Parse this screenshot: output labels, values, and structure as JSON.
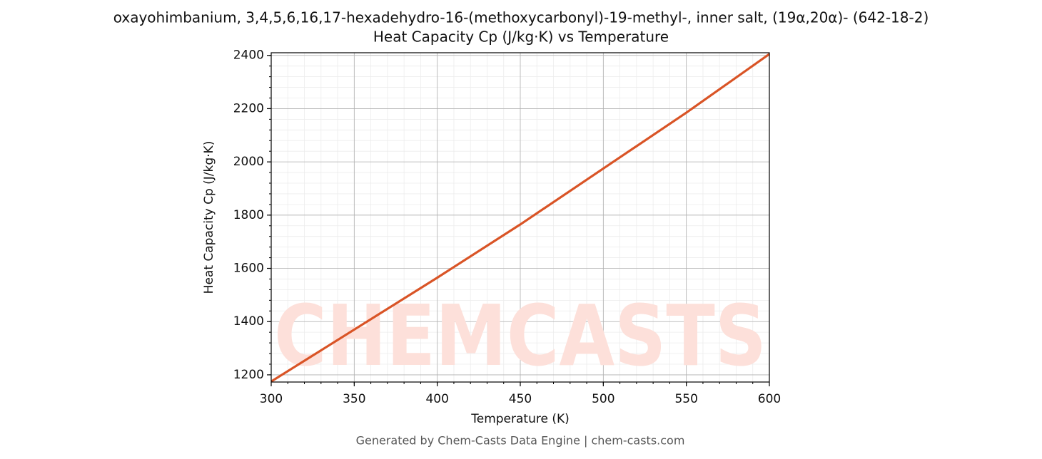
{
  "chart_data": {
    "type": "line",
    "title": "oxayohimbanium, 3,4,5,6,16,17-hexadehydro-16-(methoxycarbonyl)-19-methyl-, inner salt, (19α,20α)- (642-18-2)",
    "subtitle": "Heat Capacity Cp (J/kg·K) vs Temperature",
    "x_label": "Temperature (K)",
    "y_label": "Heat Capacity Cp (J/kg·K)",
    "footer": "Generated by Chem-Casts Data Engine | chem-casts.com",
    "watermark": "CHEMCASTS",
    "x": [
      300,
      350,
      400,
      450,
      500,
      550,
      600
    ],
    "series": [
      {
        "name": "Heat Capacity Cp",
        "color": "#d95426",
        "values": [
          1175,
          1370,
          1565,
          1765,
          1975,
          2185,
          2405
        ]
      }
    ],
    "xlim": [
      300,
      600
    ],
    "xticks": [
      300,
      350,
      400,
      450,
      500,
      550,
      600
    ],
    "ylim": [
      1173,
      2410
    ],
    "yticks": [
      1200,
      1400,
      1600,
      1800,
      2000,
      2200,
      2400
    ],
    "grid": true
  }
}
